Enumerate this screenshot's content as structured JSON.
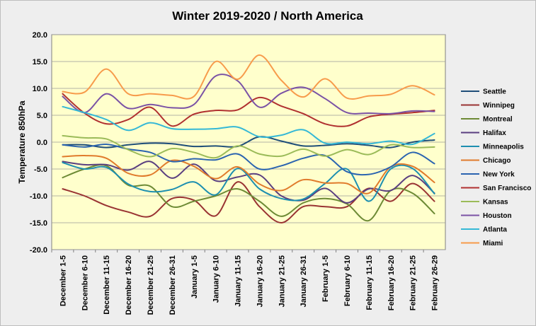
{
  "chart_data": {
    "type": "line",
    "title": "Winter 2019-2020 / North America",
    "ylabel": "Temperature 850hPa",
    "xlabel": "",
    "ylim": [
      -20,
      20
    ],
    "yticks": [
      "20.0",
      "15.0",
      "10.0",
      "5.0",
      "0.0",
      "-5.0",
      "-10.0",
      "-15.0",
      "-20.0"
    ],
    "ytick_values": [
      20,
      15,
      10,
      5,
      0,
      -5,
      -10,
      -15,
      -20
    ],
    "grid": true,
    "legend_position": "right",
    "plot_background": "#ffffcc",
    "categories": [
      "December 1-5",
      "December 6-10",
      "December 11-15",
      "December 16-20",
      "December 21-25",
      "December 26-31",
      "January 1-5",
      "January 6-10",
      "January 11-15",
      "January 16-20",
      "January 21-25",
      "January 26-31",
      "February 1-5",
      "February 6-10",
      "February 11-15",
      "February 16-20",
      "February 21-25",
      "February 26-29"
    ],
    "series": [
      {
        "name": "Seattle",
        "color": "#1f4e79",
        "values": [
          -0.5,
          -0.5,
          -1.0,
          -0.5,
          -0.2,
          -0.3,
          -0.8,
          -0.7,
          -0.8,
          1.0,
          0.2,
          -0.7,
          -0.6,
          -0.3,
          -0.6,
          -1.0,
          0.0,
          0.4
        ]
      },
      {
        "name": "Winnipeg",
        "color": "#993333",
        "values": [
          -8.7,
          -10.0,
          -11.8,
          -13.0,
          -13.8,
          -10.5,
          -10.8,
          -13.7,
          -7.4,
          -12.0,
          -15.0,
          -12.0,
          -12.0,
          -12.0,
          -8.6,
          -11.0,
          -7.7,
          -11.0
        ]
      },
      {
        "name": "Montreal",
        "color": "#6d8a35",
        "values": [
          -6.6,
          -5.0,
          -4.4,
          -8.0,
          -8.2,
          -12.0,
          -11.0,
          -10.0,
          -8.7,
          -11.0,
          -13.8,
          -11.3,
          -10.5,
          -11.5,
          -14.6,
          -9.0,
          -9.5,
          -13.3
        ]
      },
      {
        "name": "Halifax",
        "color": "#5a3f80",
        "values": [
          -3.6,
          -4.2,
          -4.2,
          -5.2,
          -3.6,
          -6.7,
          -4.1,
          -7.2,
          -6.5,
          -6.1,
          -10.0,
          -10.8,
          -8.6,
          -11.3,
          -8.7,
          -9.0,
          -6.2,
          -9.5
        ]
      },
      {
        "name": "Minneapolis",
        "color": "#1d8fb0",
        "values": [
          -3.8,
          -5.0,
          -4.7,
          -7.8,
          -9.2,
          -8.8,
          -7.4,
          -9.8,
          -4.9,
          -8.7,
          -10.5,
          -10.6,
          -7.7,
          -5.0,
          -11.0,
          -5.0,
          -4.9,
          -9.6
        ]
      },
      {
        "name": "Chicago",
        "color": "#e07b2c",
        "values": [
          -2.7,
          -2.5,
          -3.0,
          -5.8,
          -6.1,
          -3.4,
          -4.5,
          -6.8,
          -4.6,
          -7.8,
          -9.0,
          -7.0,
          -7.6,
          -7.7,
          -9.5,
          -4.6,
          -4.5,
          -7.5
        ]
      },
      {
        "name": "New York",
        "color": "#2b64b0",
        "values": [
          -0.5,
          -0.9,
          -0.4,
          -1.3,
          -1.9,
          -3.6,
          -3.1,
          -3.3,
          -2.2,
          -5.0,
          -4.4,
          -3.0,
          -2.5,
          -5.5,
          -6.0,
          -4.6,
          -1.9,
          -4.0
        ]
      },
      {
        "name": "San Francisco",
        "color": "#b03030",
        "values": [
          9.0,
          5.4,
          3.4,
          4.2,
          6.5,
          3.0,
          5.2,
          5.9,
          6.0,
          8.3,
          6.7,
          5.3,
          3.4,
          3.0,
          4.7,
          5.2,
          5.5,
          5.9
        ]
      },
      {
        "name": "Kansas",
        "color": "#9bbb59",
        "values": [
          1.2,
          0.8,
          0.6,
          -1.4,
          -2.7,
          -1.2,
          -1.9,
          -2.9,
          -0.7,
          -2.2,
          -2.6,
          -1.3,
          -2.6,
          -1.4,
          -2.3,
          -0.5,
          -1.0,
          -0.9
        ]
      },
      {
        "name": "Houston",
        "color": "#7a52a5",
        "values": [
          8.5,
          5.5,
          9.0,
          6.3,
          7.0,
          6.4,
          7.0,
          12.3,
          11.4,
          6.5,
          9.1,
          10.2,
          8.1,
          5.5,
          5.4,
          5.3,
          5.8,
          5.7
        ]
      },
      {
        "name": "Atlanta",
        "color": "#35b8d6",
        "values": [
          6.6,
          5.5,
          4.2,
          2.2,
          3.6,
          2.5,
          2.4,
          2.5,
          2.8,
          1.0,
          1.3,
          2.3,
          -0.2,
          0.0,
          -0.3,
          0.2,
          -0.4,
          1.6
        ]
      },
      {
        "name": "Miami",
        "color": "#f79b4b",
        "values": [
          9.4,
          9.3,
          13.6,
          9.0,
          9.0,
          8.7,
          8.5,
          15.0,
          11.7,
          16.2,
          11.5,
          8.4,
          11.8,
          8.2,
          8.6,
          8.9,
          10.5,
          8.8
        ]
      }
    ]
  }
}
